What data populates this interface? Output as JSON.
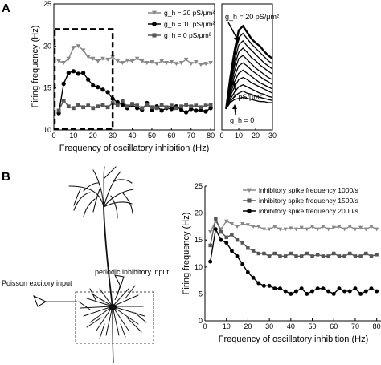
{
  "panels": {
    "a": "A",
    "b": "B"
  },
  "colors": {
    "gray": "#888888",
    "darkgray": "#555555",
    "black": "#000000"
  },
  "chart_data": [
    {
      "id": "A-main",
      "type": "line",
      "xlabel": "Frequency of oscillatory inhibition (Hz)",
      "ylabel": "Firing frequency (Hz)",
      "xlim": [
        0,
        82
      ],
      "ylim": [
        10,
        25
      ],
      "xticks": [
        0,
        10,
        20,
        30,
        40,
        50,
        60,
        70,
        80
      ],
      "yticks": [
        10,
        15,
        20,
        25
      ],
      "x": [
        2.5,
        5,
        7.5,
        10,
        12.5,
        15,
        17.5,
        20,
        22.5,
        25,
        27.5,
        30,
        32.5,
        35,
        37.5,
        40,
        42.5,
        45,
        47.5,
        50,
        52.5,
        55,
        57.5,
        60,
        62.5,
        65,
        67.5,
        70,
        72.5,
        75,
        77.5,
        80
      ],
      "series": [
        {
          "name": "g_h = 20 pS/μm²",
          "marker": "triangle",
          "color": "#888888",
          "values": [
            18.2,
            18.0,
            18.5,
            19.8,
            20.0,
            19.5,
            18.7,
            18.5,
            18.2,
            18.5,
            18.4,
            18.7,
            18.2,
            18.0,
            18.3,
            18.2,
            18.5,
            18.2,
            18.0,
            18.1,
            17.9,
            18.2,
            18.0,
            18.1,
            17.9,
            18.0,
            18.4,
            17.9,
            18.1,
            17.8,
            17.9,
            18.0
          ]
        },
        {
          "name": "g_h = 10 pS/μm²",
          "marker": "circle",
          "color": "#000000",
          "values": [
            12.0,
            15.5,
            16.8,
            17.0,
            16.7,
            16.8,
            16.0,
            15.3,
            15.1,
            14.8,
            14.5,
            13.7,
            13.3,
            13.0,
            12.6,
            13.0,
            12.6,
            12.4,
            13.2,
            12.4,
            12.8,
            12.3,
            12.6,
            12.5,
            12.8,
            12.4,
            12.1,
            12.5,
            12.3,
            12.4,
            12.2,
            12.6
          ]
        },
        {
          "name": "g_h = 0 pS/μm²",
          "marker": "square",
          "color": "#555555",
          "values": [
            12.3,
            13.5,
            12.8,
            12.6,
            13.0,
            12.7,
            12.9,
            12.6,
            12.8,
            13.0,
            12.7,
            13.2,
            12.9,
            13.4,
            12.8,
            13.1,
            12.9,
            12.6,
            13.0,
            12.7,
            12.6,
            13.0,
            12.7,
            12.9,
            12.6,
            12.8,
            13.0,
            12.8,
            12.9,
            12.7,
            12.9,
            13.0
          ]
        }
      ],
      "legend": "top-right",
      "highlight_box": {
        "x": [
          0,
          30
        ],
        "y": [
          10,
          22
        ]
      }
    },
    {
      "id": "A-inset",
      "type": "line",
      "xlim": [
        0,
        30
      ],
      "ylim": [
        10,
        22
      ],
      "xticks": [
        0,
        10,
        20,
        30
      ],
      "annotations": {
        "top": "g_h = 20 pS/μm²",
        "middle": "2 pS/μm²",
        "bottom": "g_h = 0"
      },
      "x": [
        2.5,
        5,
        7.5,
        10,
        12.5,
        15,
        17.5,
        20,
        22.5,
        25,
        27.5,
        30
      ],
      "series": [
        {
          "values": [
            12.0,
            15.0,
            17.5,
            19.5,
            19.9,
            19.3,
            18.7,
            18.3,
            18.0,
            17.5,
            17.1,
            16.8
          ]
        },
        {
          "values": [
            12.0,
            14.8,
            17.0,
            18.8,
            19.2,
            18.7,
            18.2,
            17.8,
            17.4,
            17.0,
            16.6,
            16.3
          ]
        },
        {
          "values": [
            12.0,
            14.5,
            16.5,
            18.1,
            18.5,
            18.0,
            17.6,
            17.2,
            16.8,
            16.4,
            16.1,
            15.8
          ]
        },
        {
          "values": [
            12.0,
            14.3,
            16.1,
            17.4,
            17.8,
            17.4,
            16.9,
            16.6,
            16.2,
            15.9,
            15.6,
            15.3
          ]
        },
        {
          "values": [
            12.0,
            14.0,
            15.6,
            16.8,
            17.1,
            16.7,
            16.3,
            15.9,
            15.6,
            15.3,
            15.0,
            14.8
          ]
        },
        {
          "values": [
            12.0,
            13.7,
            15.1,
            16.1,
            16.4,
            16.1,
            15.7,
            15.4,
            15.1,
            14.8,
            14.6,
            14.3
          ]
        },
        {
          "values": [
            12.0,
            13.4,
            14.6,
            15.4,
            15.7,
            15.4,
            15.1,
            14.8,
            14.5,
            14.3,
            14.1,
            13.9
          ]
        },
        {
          "values": [
            12.0,
            13.2,
            14.1,
            14.8,
            15.0,
            14.8,
            14.5,
            14.3,
            14.1,
            13.9,
            13.7,
            13.5
          ]
        },
        {
          "values": [
            12.0,
            12.9,
            13.6,
            14.1,
            14.3,
            14.1,
            13.9,
            13.7,
            13.5,
            13.4,
            13.2,
            13.1
          ]
        },
        {
          "values": [
            12.0,
            12.7,
            13.2,
            13.5,
            13.7,
            13.5,
            13.4,
            13.2,
            13.1,
            13.0,
            12.9,
            12.8
          ]
        },
        {
          "values": [
            12.0,
            12.6,
            12.9,
            13.0,
            13.1,
            13.0,
            12.9,
            12.8,
            12.7,
            12.7,
            12.6,
            12.6
          ]
        }
      ]
    },
    {
      "id": "B",
      "type": "line",
      "xlabel": "Frequency of oscillatory inhibition (Hz)",
      "ylabel": "Firing frequency (Hz)",
      "xlim": [
        0,
        82
      ],
      "ylim": [
        0,
        25
      ],
      "xticks": [
        0,
        10,
        20,
        30,
        40,
        50,
        60,
        70,
        80
      ],
      "yticks": [
        0,
        5,
        10,
        15,
        20,
        25
      ],
      "x": [
        2.5,
        5,
        7.5,
        10,
        12.5,
        15,
        17.5,
        20,
        22.5,
        25,
        27.5,
        30,
        32.5,
        35,
        37.5,
        40,
        42.5,
        45,
        47.5,
        50,
        52.5,
        55,
        57.5,
        60,
        62.5,
        65,
        67.5,
        70,
        72.5,
        75,
        77.5,
        80
      ],
      "series": [
        {
          "name": "inhibitory spike frequency 1000/s",
          "marker": "triangle",
          "color": "#888888",
          "values": [
            16.5,
            18.5,
            17.0,
            18.5,
            18.0,
            17.5,
            18.0,
            17.8,
            17.5,
            17.5,
            17.0,
            17.0,
            17.5,
            17.0,
            17.0,
            17.2,
            17.0,
            17.3,
            17.0,
            17.5,
            17.0,
            17.5,
            17.0,
            17.3,
            17.5,
            17.0,
            17.5,
            17.0,
            17.3,
            17.0,
            17.5,
            17.0
          ]
        },
        {
          "name": "inhibitory spike frequency 1500/s",
          "marker": "square",
          "color": "#555555",
          "values": [
            14.0,
            19.0,
            16.5,
            15.5,
            16.0,
            15.0,
            14.5,
            13.5,
            13.0,
            12.5,
            12.5,
            12.0,
            12.5,
            12.0,
            12.0,
            12.5,
            12.0,
            12.0,
            12.5,
            12.0,
            12.3,
            12.0,
            12.0,
            12.5,
            12.0,
            12.0,
            12.5,
            12.0,
            12.0,
            12.5,
            12.0,
            12.3
          ]
        },
        {
          "name": "inhibitory spike frequency 2000/s",
          "marker": "circle",
          "color": "#000000",
          "values": [
            11.0,
            17.0,
            15.0,
            14.5,
            13.0,
            12.0,
            10.5,
            9.0,
            8.0,
            7.0,
            6.5,
            6.5,
            6.0,
            6.0,
            5.5,
            5.0,
            5.5,
            6.0,
            5.0,
            5.5,
            6.0,
            6.0,
            5.5,
            5.0,
            6.0,
            5.5,
            5.5,
            6.0,
            5.0,
            5.5,
            6.0,
            5.5
          ]
        }
      ],
      "legend": "top-right"
    }
  ],
  "neuron": {
    "poisson_label": "Poisson excitory input",
    "periodic_label": "periodic inhibitory input"
  }
}
